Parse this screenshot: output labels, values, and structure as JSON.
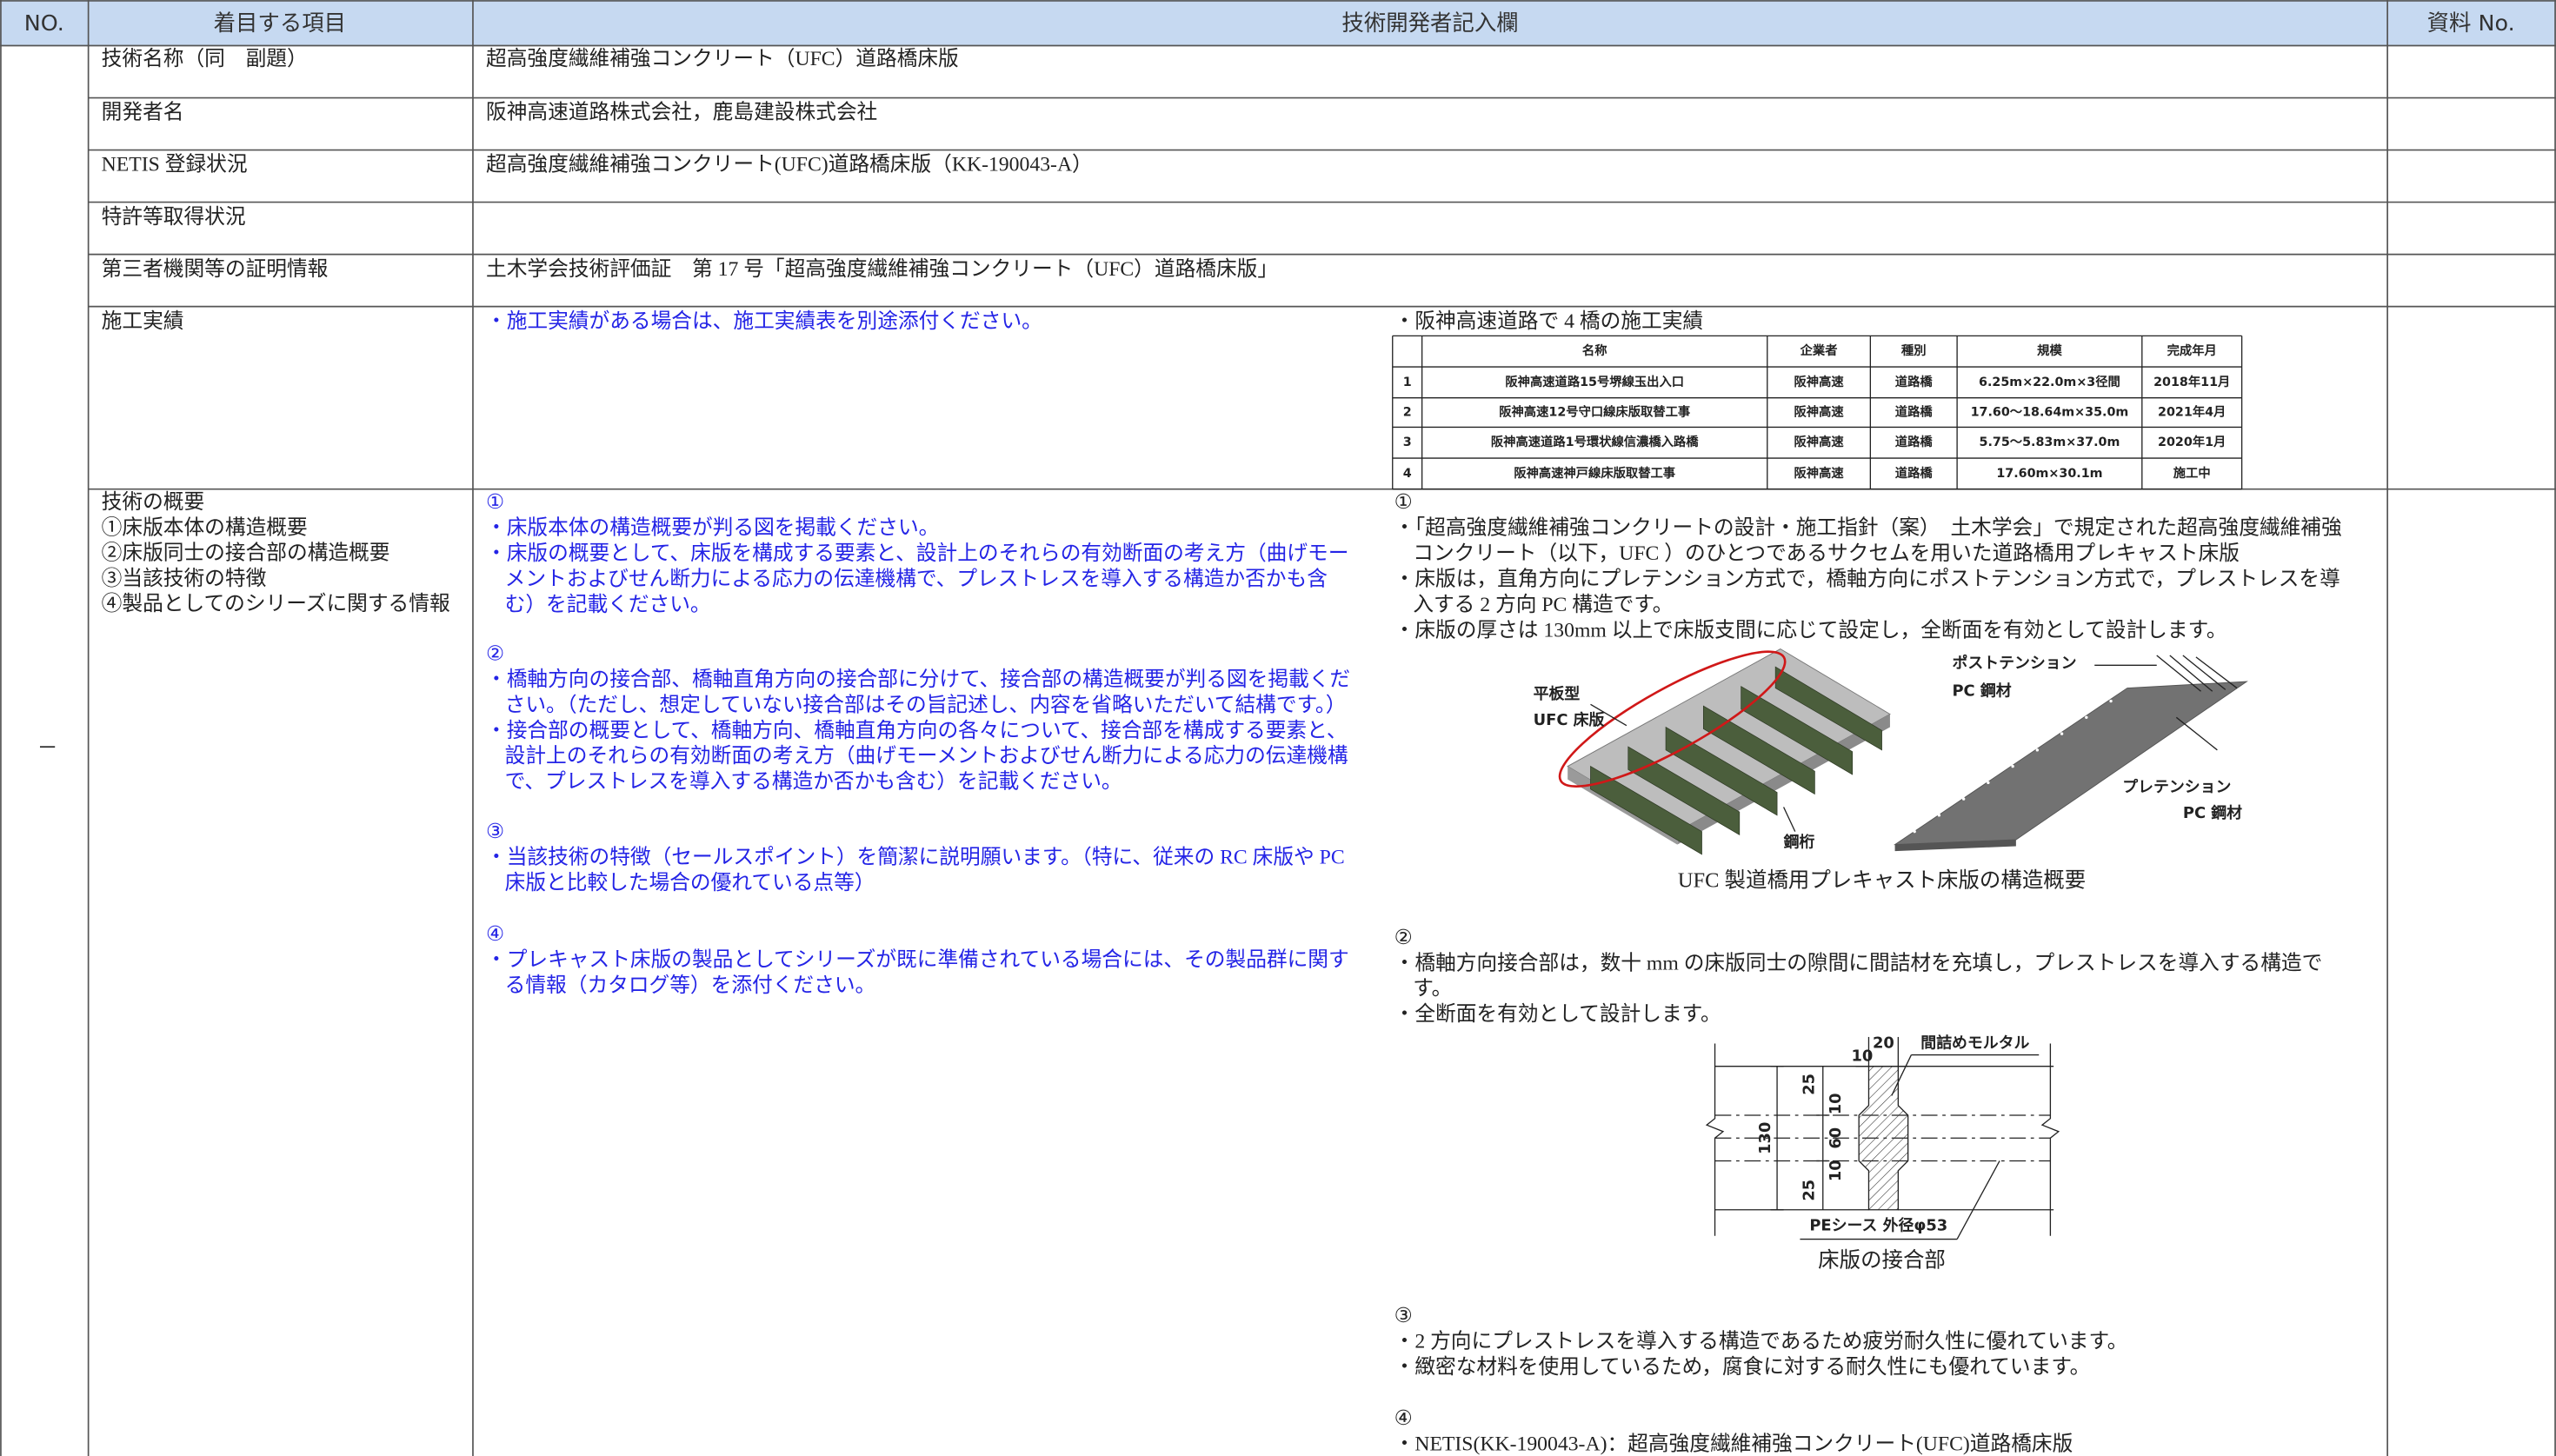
{
  "header": {
    "no": "NO.",
    "item": "着目する項目",
    "entry": "技術開発者記入欄",
    "ref": "資料 No."
  },
  "no_mark": "－",
  "rows": [
    {
      "item": "技術名称（同　副題）",
      "entry": "超高強度繊維補強コンクリート（UFC）道路橋床版"
    },
    {
      "item": "開発者名",
      "entry": "阪神高速道路株式会社，鹿島建設株式会社"
    },
    {
      "item": "NETIS 登録状況",
      "entry": "超高強度繊維補強コンクリート(UFC)道路橋床版（KK-190043-A）"
    },
    {
      "item": "特許等取得状況"
    },
    {
      "item": "第三者機関等の証明情報",
      "entry": "土木学会技術評価証　第 17 号「超高強度繊維補強コンクリート（UFC）道路橋床版」"
    }
  ],
  "record": {
    "item": "施工実績",
    "guide": "・施工実績がある場合は、施工実績表を別途添付ください。",
    "intro": "・阪神高速道路で 4 橋の施工実績",
    "table": {
      "header": [
        "名称",
        "企業者",
        "種別",
        "規模",
        "完成年月"
      ],
      "rows": [
        [
          "1",
          "阪神高速道路15号堺線玉出入口",
          "阪神高速",
          "道路橋",
          "6.25m×22.0m×3径間",
          "2018年11月"
        ],
        [
          "2",
          "阪神高速12号守口線床版取替工事",
          "阪神高速",
          "道路橋",
          "17.60〜18.64m×35.0m",
          "2021年4月"
        ],
        [
          "3",
          "阪神高速道路1号環状線信濃橋入路橋",
          "阪神高速",
          "道路橋",
          "5.75〜5.83m×37.0m",
          "2020年1月"
        ],
        [
          "4",
          "阪神高速神戸線床版取替工事",
          "阪神高速",
          "道路橋",
          "17.60m×30.1m",
          "施工中"
        ]
      ]
    }
  },
  "overview": {
    "item": [
      "技術の概要",
      "①床版本体の構造概要",
      "②床版同士の接合部の構造概要",
      "③当該技術の特徴",
      "④製品としてのシリーズに関する情報"
    ],
    "guide": [
      {
        "num": "①",
        "lines": [
          "・床版本体の構造概要が判る図を掲載ください。",
          "・床版の概要として、床版を構成する要素と、設計上のそれらの有効断面の考え方（曲げモー",
          "メントおよびせん断力による応力の伝達機構で、プレストレスを導入する構造か否かも含",
          "む）を記載ください。"
        ]
      },
      {
        "num": "②",
        "lines": [
          "・橋軸方向の接合部、橋軸直角方向の接合部に分けて、接合部の構造概要が判る図を掲載くだ",
          "さい。（ただし、想定していない接合部はその旨記述し、内容を省略いただいて結構です。）",
          "・接合部の概要として、橋軸方向、橋軸直角方向の各々について、接合部を構成する要素と、",
          "設計上のそれらの有効断面の考え方（曲げモーメントおよびせん断力による応力の伝達機構",
          "で、プレストレスを導入する構造か否かも含む）を記載ください。"
        ]
      },
      {
        "num": "③",
        "lines": [
          "・当該技術の特徴（セールスポイント）を簡潔に説明願います。（特に、従来の RC 床版や PC",
          "床版と比較した場合の優れている点等）"
        ]
      },
      {
        "num": "④",
        "lines": [
          "・プレキャスト床版の製品としてシリーズが既に準備されている場合には、その製品群に関す",
          "る情報（カタログ等）を添付ください。"
        ]
      }
    ],
    "content": [
      {
        "num": "①",
        "lines": [
          "・「超高強度繊維補強コンクリートの設計・施工指針（案）　土木学会」で規定された超高強度繊維補強",
          "コンクリート（以下，UFC ）のひとつであるサクセムを用いた道路橋用プレキャスト床版",
          "・床版は，直角方向にプレテンション方式で，橋軸方向にポストテンション方式で，プレストレスを導",
          "入する 2 方向 PC 構造です。",
          "・床版の厚さは 130mm 以上で床版支間に応じて設定し，全断面を有効として設計します。"
        ]
      },
      {
        "num": "②",
        "lines": [
          "・橋軸方向接合部は，数十 mm の床版同士の隙間に間詰材を充填し，プレストレスを導入する構造で",
          "す。",
          "・全断面を有効として設計します。"
        ]
      },
      {
        "num": "③",
        "lines": [
          "・2 方向にプレストレスを導入する構造であるため疲労耐久性に優れています。",
          "・緻密な材料を使用しているため，腐食に対する耐久性にも優れています。"
        ]
      },
      {
        "num": "④",
        "lines": [
          "・NETIS(KK-190043-A)：超高強度繊維補強コンクリート(UFC)道路橋床版"
        ]
      }
    ],
    "figures": {
      "slab": {
        "caption": "UFC 製道橋用プレキャスト床版の構造概要",
        "labels": [
          "平板型",
          "UFC 床版",
          "ポストテンション",
          "PC 鋼材",
          "プレテンション",
          "PC 鋼材",
          "鋼桁"
        ]
      },
      "joint": {
        "caption": "床版の接合部",
        "labels": [
          "間詰めモルタル",
          "PEシース 外径φ53"
        ],
        "dims": [
          10,
          20,
          25,
          10,
          60,
          10,
          25,
          130
        ]
      }
    }
  }
}
